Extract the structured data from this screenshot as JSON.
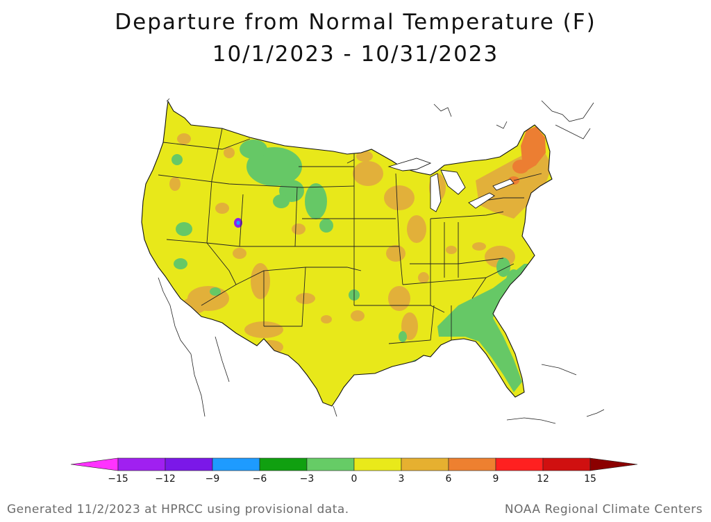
{
  "title": {
    "line1": "Departure from Normal Temperature (F)",
    "line2": "10/1/2023 - 10/31/2023"
  },
  "legend": {
    "ticks": [
      "-15",
      "-12",
      "-9",
      "-6",
      "-3",
      "0",
      "3",
      "6",
      "9",
      "12",
      "15"
    ],
    "colors": [
      "#ff33ff",
      "#a020f0",
      "#7b18e8",
      "#1e9bff",
      "#10a010",
      "#66cc66",
      "#e9e91a",
      "#e6b030",
      "#ee8030",
      "#ff2020",
      "#d01010",
      "#8b0000"
    ]
  },
  "footer": {
    "left": "Generated 11/2/2023 at HPRCC using provisional data.",
    "right": "NOAA Regional Climate Centers"
  }
}
